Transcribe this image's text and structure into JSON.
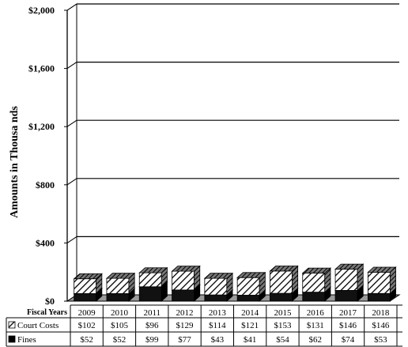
{
  "chart_data": {
    "type": "bar",
    "stacked": true,
    "three_d": true,
    "ylabel": "Amounts in Thousa nds",
    "ylim": [
      0,
      2000
    ],
    "yticks": [
      "$0",
      "$400",
      "$800",
      "$1,200",
      "$1,600",
      "$2,000"
    ],
    "ytick_values": [
      0,
      400,
      800,
      1200,
      1600,
      2000
    ],
    "grid": true,
    "table_header": "Fiscal Years",
    "categories": [
      "2009",
      "2010",
      "2011",
      "2012",
      "2013",
      "2014",
      "2015",
      "2016",
      "2017",
      "2018"
    ],
    "series": [
      {
        "name": "Court Costs",
        "pattern": "hatched",
        "values": [
          102,
          105,
          96,
          129,
          114,
          121,
          153,
          131,
          146,
          146
        ],
        "labels": [
          "$102",
          "$105",
          "$96",
          "$129",
          "$114",
          "$121",
          "$153",
          "$131",
          "$146",
          "$146"
        ]
      },
      {
        "name": "Fines",
        "pattern": "solid-black",
        "values": [
          52,
          52,
          99,
          77,
          43,
          41,
          54,
          62,
          74,
          53
        ],
        "labels": [
          "$52",
          "$52",
          "$99",
          "$77",
          "$43",
          "$41",
          "$54",
          "$62",
          "$74",
          "$53"
        ]
      }
    ]
  },
  "colors": {
    "fines": "#000000",
    "court_costs_hatch": "#000000",
    "background": "#ffffff"
  }
}
